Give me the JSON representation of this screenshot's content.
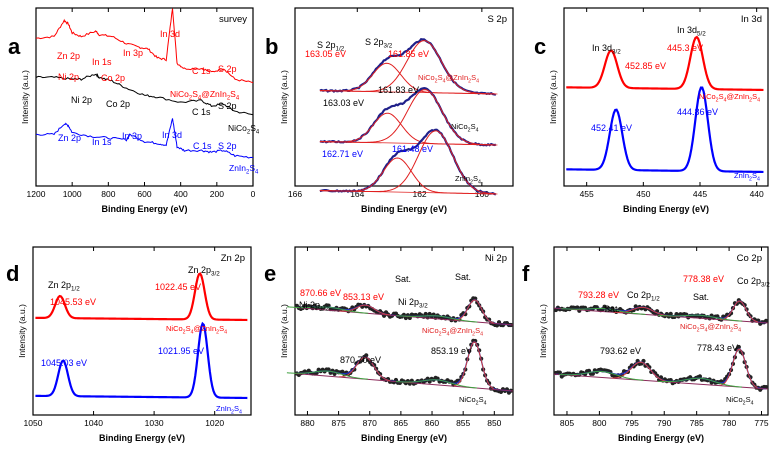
{
  "chart_data": [
    {
      "type": "line",
      "letter": "a",
      "title": "survey",
      "xlabel": "Binding Energy (eV)",
      "ylabel": "Intensity (a.u.)",
      "xlim": [
        1200,
        0
      ],
      "xticks": [
        "1200",
        "1000",
        "800",
        "600",
        "400",
        "200",
        "0"
      ],
      "series": [
        {
          "name": "NiCo2S4@ZnIn2S4",
          "color": "#ff0000",
          "x": [
            1200,
            1100,
            1044,
            1021,
            1000,
            950,
            870,
            850,
            780,
            700,
            630,
            580,
            530,
            480,
            445,
            420,
            380,
            285,
            230,
            162,
            100,
            0
          ],
          "y": [
            0.83,
            0.84,
            0.93,
            0.91,
            0.86,
            0.84,
            0.87,
            0.85,
            0.84,
            0.8,
            0.78,
            0.77,
            0.72,
            0.71,
            1.0,
            0.69,
            0.66,
            0.66,
            0.64,
            0.66,
            0.6,
            0.58
          ]
        },
        {
          "name": "NiCo2S4",
          "color": "#000000",
          "x": [
            1200,
            1100,
            1000,
            950,
            870,
            850,
            780,
            700,
            600,
            530,
            400,
            285,
            230,
            162,
            100,
            0
          ],
          "y": [
            0.61,
            0.61,
            0.6,
            0.6,
            0.63,
            0.61,
            0.59,
            0.55,
            0.51,
            0.5,
            0.47,
            0.48,
            0.45,
            0.46,
            0.42,
            0.4
          ]
        },
        {
          "name": "ZnIn2S4",
          "color": "#0000ff",
          "x": [
            1200,
            1100,
            1044,
            1021,
            1000,
            900,
            800,
            700,
            680,
            600,
            530,
            480,
            445,
            420,
            380,
            285,
            230,
            162,
            100,
            0
          ],
          "y": [
            0.29,
            0.29,
            0.35,
            0.34,
            0.3,
            0.28,
            0.27,
            0.26,
            0.29,
            0.25,
            0.24,
            0.23,
            0.38,
            0.22,
            0.2,
            0.2,
            0.19,
            0.2,
            0.17,
            0.16
          ]
        }
      ],
      "annotations": [
        {
          "text": "Zn 2p",
          "color": "#ff0000"
        },
        {
          "text": "In 1s",
          "color": "#ff0000"
        },
        {
          "text": "In 3p",
          "color": "#ff0000"
        },
        {
          "text": "In 3d",
          "color": "#ff0000"
        },
        {
          "text": "Ni 2p",
          "color": "#ff0000"
        },
        {
          "text": "Co 2p",
          "color": "#ff0000"
        },
        {
          "text": "C 1s",
          "color": "#ff0000"
        },
        {
          "text": "S 2p",
          "color": "#ff0000"
        },
        {
          "text": "Ni 2p",
          "color": "#000000"
        },
        {
          "text": "Co 2p",
          "color": "#000000"
        },
        {
          "text": "C 1s",
          "color": "#000000"
        },
        {
          "text": "S 2p",
          "color": "#000000"
        },
        {
          "text": "Zn 2p",
          "color": "#0000ff"
        },
        {
          "text": "In 1s",
          "color": "#0000ff"
        },
        {
          "text": "In 3p",
          "color": "#0000ff"
        },
        {
          "text": "In 3d",
          "color": "#0000ff"
        },
        {
          "text": "C 1s",
          "color": "#0000ff"
        },
        {
          "text": "S 2p",
          "color": "#0000ff"
        }
      ]
    },
    {
      "type": "line",
      "letter": "b",
      "title": "S 2p",
      "xlabel": "Binding Energy (eV)",
      "ylabel": "Intensity (a.u.)",
      "xlim": [
        166,
        159
      ],
      "xticks": [
        "166",
        "164",
        "162",
        "160"
      ],
      "series": [
        {
          "name": "NiCo2S4@ZnIn2S4",
          "peaks_eV": [
            163.05,
            161.85
          ]
        },
        {
          "name": "NiCo2S4",
          "peaks_eV": [
            163.03,
            161.83
          ]
        },
        {
          "name": "ZnIn2S4",
          "peaks_eV": [
            162.71,
            161.48
          ]
        }
      ],
      "annotations": [
        {
          "text": "S 2p1/2",
          "color": "#000000"
        },
        {
          "text": "S 2p3/2",
          "color": "#000000"
        },
        {
          "text": "163.05 eV",
          "color": "#ff0000"
        },
        {
          "text": "161.85 eV",
          "color": "#ff0000"
        },
        {
          "text": "163.03 eV",
          "color": "#000000"
        },
        {
          "text": "161.83 eV",
          "color": "#000000"
        },
        {
          "text": "162.71 eV",
          "color": "#0000ff"
        },
        {
          "text": "161.48 eV",
          "color": "#0000ff"
        }
      ]
    },
    {
      "type": "line",
      "letter": "c",
      "title": "In 3d",
      "xlabel": "Binding Energy (eV)",
      "ylabel": "Intensity (a.u.)",
      "xlim": [
        457,
        439
      ],
      "xticks": [
        "455",
        "450",
        "445",
        "440"
      ],
      "series": [
        {
          "name": "NiCo2S4@ZnIn2S4",
          "color": "#ff0000",
          "peaks_eV": [
            452.85,
            445.3
          ]
        },
        {
          "name": "ZnIn2S4",
          "color": "#0000ff",
          "peaks_eV": [
            452.41,
            444.86
          ]
        }
      ],
      "annotations": [
        {
          "text": "In 3d3/2",
          "color": "#000000"
        },
        {
          "text": "In 3d5/2",
          "color": "#000000"
        },
        {
          "text": "452.85 eV",
          "color": "#ff0000"
        },
        {
          "text": "445.3 eV",
          "color": "#ff0000"
        },
        {
          "text": "452.41 eV",
          "color": "#0000ff"
        },
        {
          "text": "444.86 eV",
          "color": "#0000ff"
        }
      ]
    },
    {
      "type": "line",
      "letter": "d",
      "title": "Zn 2p",
      "xlabel": "Binding Energy (eV)",
      "ylabel": "Intensity (a.u.)",
      "xlim": [
        1050,
        1014
      ],
      "xticks": [
        "1050",
        "1040",
        "1030",
        "1020"
      ],
      "series": [
        {
          "name": "NiCo2S4@ZnIn2S4",
          "color": "#ff0000",
          "peaks_eV": [
            1045.53,
            1022.45
          ]
        },
        {
          "name": "ZnIn2S4",
          "color": "#0000ff",
          "peaks_eV": [
            1045.03,
            1021.95
          ]
        }
      ],
      "annotations": [
        {
          "text": "Zn 2p1/2",
          "color": "#000000"
        },
        {
          "text": "Zn 2p3/2",
          "color": "#000000"
        },
        {
          "text": "1045.53 eV",
          "color": "#ff0000"
        },
        {
          "text": "1022.45 eV",
          "color": "#ff0000"
        },
        {
          "text": "1045.03 eV",
          "color": "#0000ff"
        },
        {
          "text": "1021.95 eV",
          "color": "#0000ff"
        }
      ]
    },
    {
      "type": "scatter",
      "letter": "e",
      "title": "Ni 2p",
      "xlabel": "Binding Energy (eV)",
      "ylabel": "Intensity (a.u.)",
      "xlim": [
        882,
        847
      ],
      "xticks": [
        "880",
        "875",
        "870",
        "865",
        "860",
        "855",
        "850"
      ],
      "series": [
        {
          "name": "NiCo2S4@ZnIn2S4",
          "peaks_eV": [
            870.66,
            853.13
          ]
        },
        {
          "name": "NiCo2S4",
          "peaks_eV": [
            870.7,
            853.19
          ]
        }
      ],
      "annotations": [
        {
          "text": "870.66 eV",
          "color": "#ff0000"
        },
        {
          "text": "853.13 eV",
          "color": "#ff0000"
        },
        {
          "text": "Ni 2p1/2",
          "color": "#000000"
        },
        {
          "text": "Ni 2p3/2",
          "color": "#000000"
        },
        {
          "text": "Sat.",
          "color": "#000000"
        },
        {
          "text": "Sat.",
          "color": "#000000"
        },
        {
          "text": "870.70 eV",
          "color": "#000000"
        },
        {
          "text": "853.19 eV",
          "color": "#000000"
        }
      ]
    },
    {
      "type": "scatter",
      "letter": "f",
      "title": "Co 2p",
      "xlabel": "Binding Energy (eV)",
      "ylabel": "Intensity (a.u.)",
      "xlim": [
        807,
        774
      ],
      "xticks": [
        "805",
        "800",
        "795",
        "790",
        "785",
        "780",
        "775"
      ],
      "series": [
        {
          "name": "NiCo2S4@ZnIn2S4",
          "peaks_eV": [
            793.28,
            778.38
          ]
        },
        {
          "name": "NiCo2S4",
          "peaks_eV": [
            793.62,
            778.43
          ]
        }
      ],
      "annotations": [
        {
          "text": "793.28 eV",
          "color": "#ff0000"
        },
        {
          "text": "778.38 eV",
          "color": "#ff0000"
        },
        {
          "text": "Co 2p1/2",
          "color": "#000000"
        },
        {
          "text": "Co 2p3/2",
          "color": "#000000"
        },
        {
          "text": "Sat.",
          "color": "#000000"
        },
        {
          "text": "Sat.",
          "color": "#000000"
        },
        {
          "text": "793.62 eV",
          "color": "#000000"
        },
        {
          "text": "778.43 eV",
          "color": "#000000"
        }
      ]
    }
  ]
}
